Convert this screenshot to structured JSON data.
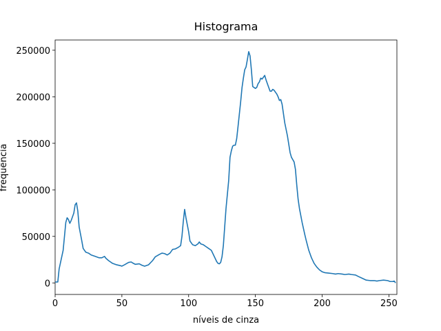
{
  "chart_data": {
    "type": "line",
    "title": "Histograma",
    "x_label": "níveis de cinza",
    "y_label": "frequência",
    "x": [
      0,
      2,
      3,
      6,
      8,
      9,
      10,
      11,
      12,
      14,
      15,
      16,
      17,
      18,
      20,
      21,
      23,
      25,
      27,
      30,
      33,
      35,
      37,
      38,
      40,
      43,
      46,
      49,
      50,
      52,
      55,
      57,
      58,
      60,
      63,
      65,
      67,
      70,
      73,
      75,
      78,
      80,
      82,
      84,
      86,
      88,
      90,
      92,
      94,
      95,
      96,
      97,
      98,
      100,
      101,
      103,
      105,
      107,
      108,
      109,
      111,
      113,
      115,
      117,
      119,
      121,
      122,
      123,
      124,
      125,
      126,
      127,
      128,
      130,
      131,
      132,
      133,
      134,
      135,
      136,
      137,
      139,
      140,
      141,
      142,
      143,
      144,
      145,
      146,
      147,
      148,
      150,
      151,
      152,
      153,
      154,
      155,
      156,
      157,
      158,
      160,
      161,
      162,
      163,
      164,
      166,
      167,
      168,
      169,
      170,
      171,
      172,
      174,
      176,
      177,
      179,
      180,
      181,
      182,
      183,
      185,
      187,
      188,
      190,
      192,
      194,
      196,
      198,
      200,
      202,
      205,
      208,
      210,
      212,
      215,
      217,
      220,
      222,
      225,
      227,
      230,
      233,
      236,
      239,
      241,
      243,
      246,
      249,
      251,
      253,
      254,
      255
    ],
    "series": [
      {
        "color": "#1f77b4",
        "values": [
          1000,
          1000,
          15000,
          35000,
          65000,
          70000,
          68000,
          64000,
          67000,
          75000,
          84000,
          86000,
          77000,
          60000,
          45000,
          37000,
          33000,
          32000,
          30000,
          28500,
          27000,
          27000,
          28500,
          26500,
          24000,
          21000,
          19500,
          18500,
          18000,
          19500,
          22000,
          22500,
          21500,
          20000,
          20500,
          19000,
          18000,
          19500,
          24000,
          28000,
          30500,
          32000,
          31500,
          30000,
          32000,
          36000,
          36500,
          38000,
          40000,
          50000,
          66000,
          79000,
          70000,
          55000,
          45000,
          41000,
          40000,
          42000,
          44000,
          42000,
          41000,
          39000,
          37000,
          35000,
          29000,
          23000,
          21000,
          20500,
          22000,
          28000,
          40000,
          60000,
          80000,
          110000,
          135000,
          142000,
          147000,
          148000,
          148000,
          155000,
          168000,
          195000,
          210000,
          220000,
          229000,
          232000,
          240000,
          248500,
          244000,
          229000,
          211000,
          209000,
          210000,
          214000,
          216000,
          220000,
          219000,
          221000,
          223000,
          218000,
          210000,
          206000,
          206000,
          208000,
          207000,
          203000,
          200000,
          196000,
          197000,
          192000,
          182000,
          172000,
          158000,
          140000,
          135000,
          130000,
          122000,
          105000,
          90000,
          80000,
          65000,
          52000,
          46000,
          35000,
          27000,
          21000,
          17000,
          14000,
          12000,
          11000,
          10500,
          10000,
          9500,
          10000,
          9500,
          9000,
          9500,
          9000,
          8500,
          7000,
          5000,
          3000,
          2500,
          2500,
          2000,
          2500,
          3000,
          2500,
          1500,
          1500,
          2000,
          0
        ]
      }
    ],
    "xlim": [
      0,
      256
    ],
    "ylim": [
      -12400,
      261000
    ],
    "xticks": [
      0,
      50,
      100,
      150,
      200,
      250
    ],
    "yticks": [
      0,
      50000,
      100000,
      150000,
      200000,
      250000
    ]
  }
}
